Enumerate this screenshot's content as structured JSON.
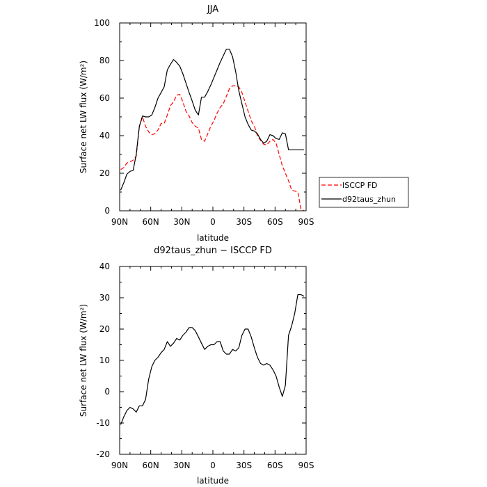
{
  "chart_data": [
    {
      "type": "line",
      "title": "JJA",
      "xlabel": "latitude",
      "ylabel": "Surface net LW flux (W/m²)",
      "xlim": [
        90,
        -90
      ],
      "ylim": [
        0,
        100
      ],
      "xticks": [
        90,
        60,
        30,
        0,
        -30,
        -60,
        -90
      ],
      "xtick_labels": [
        "90N",
        "60N",
        "30N",
        "0",
        "30S",
        "60S",
        "90S"
      ],
      "yticks": [
        0,
        20,
        40,
        60,
        80,
        100
      ],
      "legend_position": "right",
      "series": [
        {
          "name": "ISCCP FD",
          "color": "#ff0000",
          "style": "dashed",
          "x": [
            89,
            86,
            83,
            80,
            77,
            74,
            71,
            68,
            65,
            62,
            59,
            56,
            53,
            50,
            47,
            44,
            41,
            38,
            35,
            32,
            29,
            26,
            23,
            20,
            17,
            14,
            11,
            8,
            5,
            2,
            -1,
            -4,
            -7,
            -10,
            -13,
            -16,
            -19,
            -22,
            -25,
            -28,
            -31,
            -34,
            -37,
            -40,
            -43,
            -46,
            -49,
            -52,
            -55,
            -58,
            -61,
            -64,
            -67,
            -70,
            -73,
            -76,
            -79,
            -82,
            -85,
            -88
          ],
          "y": [
            22,
            23,
            25.5,
            26,
            27,
            29,
            45,
            50,
            45,
            42,
            40.5,
            41,
            43,
            46.5,
            46.5,
            51,
            56,
            58,
            61.5,
            62,
            58,
            53,
            50.5,
            47,
            45,
            44,
            38,
            37,
            41,
            45,
            48,
            52,
            55,
            57,
            61,
            65,
            66.5,
            66.5,
            66,
            63,
            58,
            53,
            48,
            45,
            40,
            37.5,
            35.5,
            35,
            37,
            38,
            36,
            30,
            24,
            20,
            16,
            11,
            10.5,
            10,
            1,
            0
          ]
        },
        {
          "name": "d92taus_zhun",
          "color": "#000000",
          "style": "solid",
          "x": [
            89,
            86,
            83,
            80,
            77,
            74,
            71,
            68,
            65,
            62,
            59,
            56,
            53,
            50,
            47,
            44,
            41,
            38,
            35,
            32,
            29,
            26,
            23,
            20,
            17,
            14,
            11,
            8,
            5,
            2,
            -1,
            -4,
            -7,
            -10,
            -13,
            -16,
            -19,
            -22,
            -25,
            -28,
            -31,
            -34,
            -37,
            -40,
            -43,
            -46,
            -49,
            -52,
            -55,
            -58,
            -61,
            -64,
            -67,
            -70,
            -73,
            -76,
            -79,
            -82,
            -85,
            -88
          ],
          "y": [
            11,
            15,
            19.5,
            21,
            21.5,
            30,
            45,
            50.5,
            50,
            50,
            51,
            55,
            60,
            63,
            66,
            75,
            78,
            80.5,
            79,
            77,
            73,
            68,
            63,
            58.5,
            53.5,
            51,
            60.5,
            60.5,
            63.5,
            67,
            71,
            75,
            79,
            82.5,
            86,
            86,
            82,
            74,
            64,
            57,
            50,
            46,
            43,
            42.5,
            41,
            38,
            36,
            37,
            40.5,
            40,
            38.5,
            38,
            41.5,
            41,
            32.5,
            32.5,
            32.5,
            32.5,
            32.5,
            32.5
          ]
        }
      ]
    },
    {
      "type": "line",
      "title": "d92taus_zhun − ISCCP FD",
      "xlabel": "latitude",
      "ylabel": "Surface net LW flux (W/m²)",
      "xlim": [
        90,
        -90
      ],
      "ylim": [
        -20,
        40
      ],
      "xticks": [
        90,
        60,
        30,
        0,
        -30,
        -60,
        -90
      ],
      "xtick_labels": [
        "90N",
        "60N",
        "30N",
        "0",
        "30S",
        "60S",
        "90S"
      ],
      "yticks": [
        -20,
        -10,
        0,
        10,
        20,
        30,
        40
      ],
      "series": [
        {
          "color": "#000000",
          "style": "solid",
          "x": [
            89,
            86,
            83,
            80,
            77,
            74,
            71,
            68,
            65,
            62,
            59,
            56,
            53,
            50,
            47,
            44,
            41,
            38,
            35,
            32,
            29,
            26,
            23,
            20,
            17,
            14,
            11,
            8,
            5,
            2,
            -1,
            -4,
            -7,
            -10,
            -13,
            -16,
            -19,
            -22,
            -25,
            -28,
            -31,
            -34,
            -37,
            -40,
            -43,
            -46,
            -49,
            -52,
            -55,
            -58,
            -61,
            -64,
            -67,
            -70,
            -73,
            -76,
            -79,
            -82,
            -85,
            -88
          ],
          "y": [
            -10.5,
            -8,
            -6,
            -5,
            -5.5,
            -6.5,
            -4.5,
            -4.5,
            -2.5,
            4,
            8,
            10,
            11,
            12.5,
            13.5,
            16,
            14.5,
            15.5,
            17,
            16.5,
            18,
            19,
            20.5,
            20.5,
            19.5,
            17.5,
            15.5,
            13.5,
            14.5,
            15,
            15,
            16,
            16,
            13,
            12,
            12,
            13.5,
            13,
            14,
            18,
            20,
            20,
            17.5,
            14,
            11,
            9,
            8.5,
            9,
            8.5,
            7,
            5,
            1.5,
            -1.5,
            2,
            18,
            21,
            25,
            31,
            31,
            30.5
          ]
        }
      ]
    }
  ]
}
